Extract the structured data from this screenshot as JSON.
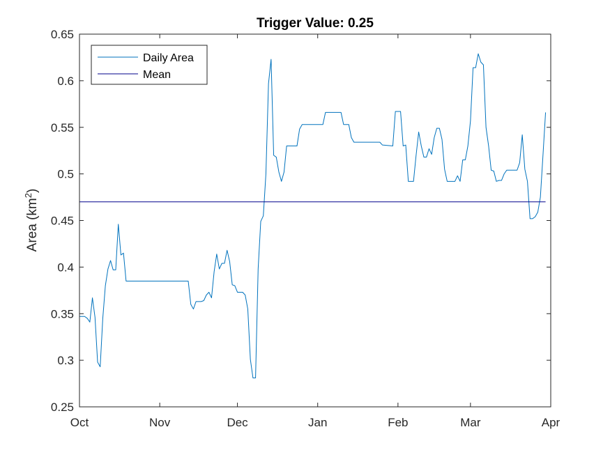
{
  "chart_data": {
    "type": "line",
    "title": "Trigger Value: 0.25",
    "xlabel": "",
    "ylabel": "Area (km",
    "ylabel_sup": "2",
    "ylabel_close": ")",
    "x_ticks": [
      "Oct",
      "Nov",
      "Dec",
      "Jan",
      "Feb",
      "Mar",
      "Apr"
    ],
    "x_tick_dates": [
      "2020-10-01",
      "2020-11-01",
      "2020-12-01",
      "2021-01-01",
      "2021-02-01",
      "2021-03-01",
      "2021-04-01"
    ],
    "xlim": [
      "2020-10-01",
      "2021-04-01"
    ],
    "y_ticks": [
      "0.25",
      "0.3",
      "0.35",
      "0.4",
      "0.45",
      "0.5",
      "0.55",
      "0.6",
      "0.65"
    ],
    "ylim": [
      0.25,
      0.65
    ],
    "grid": false,
    "legend_position": "top-left",
    "series": [
      {
        "name": "Daily Area",
        "color": "#0072BD",
        "points": [
          [
            "2020-10-01",
            0.347
          ],
          [
            "2020-10-02",
            0.347
          ],
          [
            "2020-10-03",
            0.347
          ],
          [
            "2020-10-04",
            0.345
          ],
          [
            "2020-10-05",
            0.341
          ],
          [
            "2020-10-06",
            0.367
          ],
          [
            "2020-10-07",
            0.346
          ],
          [
            "2020-10-08",
            0.298
          ],
          [
            "2020-10-09",
            0.293
          ],
          [
            "2020-10-10",
            0.345
          ],
          [
            "2020-10-11",
            0.38
          ],
          [
            "2020-10-12",
            0.398
          ],
          [
            "2020-10-13",
            0.407
          ],
          [
            "2020-10-14",
            0.397
          ],
          [
            "2020-10-15",
            0.397
          ],
          [
            "2020-10-16",
            0.446
          ],
          [
            "2020-10-17",
            0.413
          ],
          [
            "2020-10-18",
            0.415
          ],
          [
            "2020-10-19",
            0.385
          ],
          [
            "2020-10-20",
            0.385
          ],
          [
            "2020-11-12",
            0.385
          ],
          [
            "2020-11-13",
            0.36
          ],
          [
            "2020-11-14",
            0.355
          ],
          [
            "2020-11-15",
            0.363
          ],
          [
            "2020-11-16",
            0.363
          ],
          [
            "2020-11-17",
            0.363
          ],
          [
            "2020-11-18",
            0.364
          ],
          [
            "2020-11-19",
            0.37
          ],
          [
            "2020-11-20",
            0.373
          ],
          [
            "2020-11-21",
            0.367
          ],
          [
            "2020-11-22",
            0.395
          ],
          [
            "2020-11-23",
            0.414
          ],
          [
            "2020-11-24",
            0.398
          ],
          [
            "2020-11-25",
            0.404
          ],
          [
            "2020-11-26",
            0.404
          ],
          [
            "2020-11-27",
            0.418
          ],
          [
            "2020-11-28",
            0.406
          ],
          [
            "2020-11-29",
            0.381
          ],
          [
            "2020-11-30",
            0.38
          ],
          [
            "2020-12-01",
            0.373
          ],
          [
            "2020-12-02",
            0.373
          ],
          [
            "2020-12-03",
            0.373
          ],
          [
            "2020-12-04",
            0.37
          ],
          [
            "2020-12-05",
            0.355
          ],
          [
            "2020-12-06",
            0.301
          ],
          [
            "2020-12-07",
            0.281
          ],
          [
            "2020-12-08",
            0.281
          ],
          [
            "2020-12-09",
            0.398
          ],
          [
            "2020-12-10",
            0.449
          ],
          [
            "2020-12-11",
            0.455
          ],
          [
            "2020-12-12",
            0.5
          ],
          [
            "2020-12-13",
            0.597
          ],
          [
            "2020-12-14",
            0.623
          ],
          [
            "2020-12-15",
            0.52
          ],
          [
            "2020-12-16",
            0.518
          ],
          [
            "2020-12-17",
            0.502
          ],
          [
            "2020-12-18",
            0.492
          ],
          [
            "2020-12-19",
            0.502
          ],
          [
            "2020-12-20",
            0.53
          ],
          [
            "2020-12-21",
            0.53
          ],
          [
            "2020-12-22",
            0.53
          ],
          [
            "2020-12-23",
            0.53
          ],
          [
            "2020-12-24",
            0.53
          ],
          [
            "2020-12-25",
            0.548
          ],
          [
            "2020-12-26",
            0.553
          ],
          [
            "2021-01-03",
            0.553
          ],
          [
            "2021-01-04",
            0.566
          ],
          [
            "2021-01-10",
            0.566
          ],
          [
            "2021-01-11",
            0.553
          ],
          [
            "2021-01-13",
            0.553
          ],
          [
            "2021-01-14",
            0.539
          ],
          [
            "2021-01-15",
            0.534
          ],
          [
            "2021-01-25",
            0.534
          ],
          [
            "2021-01-26",
            0.531
          ],
          [
            "2021-01-30",
            0.53
          ],
          [
            "2021-01-31",
            0.567
          ],
          [
            "2021-02-02",
            0.567
          ],
          [
            "2021-02-03",
            0.53
          ],
          [
            "2021-02-04",
            0.531
          ],
          [
            "2021-02-05",
            0.492
          ],
          [
            "2021-02-07",
            0.492
          ],
          [
            "2021-02-08",
            0.52
          ],
          [
            "2021-02-09",
            0.545
          ],
          [
            "2021-02-10",
            0.53
          ],
          [
            "2021-02-11",
            0.518
          ],
          [
            "2021-02-12",
            0.518
          ],
          [
            "2021-02-13",
            0.527
          ],
          [
            "2021-02-14",
            0.521
          ],
          [
            "2021-02-15",
            0.539
          ],
          [
            "2021-02-16",
            0.549
          ],
          [
            "2021-02-17",
            0.549
          ],
          [
            "2021-02-18",
            0.537
          ],
          [
            "2021-02-19",
            0.505
          ],
          [
            "2021-02-20",
            0.492
          ],
          [
            "2021-02-23",
            0.492
          ],
          [
            "2021-02-24",
            0.498
          ],
          [
            "2021-02-25",
            0.492
          ],
          [
            "2021-02-26",
            0.515
          ],
          [
            "2021-02-27",
            0.515
          ],
          [
            "2021-02-28",
            0.53
          ],
          [
            "2021-03-01",
            0.557
          ],
          [
            "2021-03-02",
            0.614
          ],
          [
            "2021-03-03",
            0.614
          ],
          [
            "2021-03-04",
            0.629
          ],
          [
            "2021-03-05",
            0.62
          ],
          [
            "2021-03-06",
            0.617
          ],
          [
            "2021-03-07",
            0.55
          ],
          [
            "2021-03-08",
            0.53
          ],
          [
            "2021-03-09",
            0.504
          ],
          [
            "2021-03-10",
            0.503
          ],
          [
            "2021-03-11",
            0.492
          ],
          [
            "2021-03-12",
            0.493
          ],
          [
            "2021-03-13",
            0.493
          ],
          [
            "2021-03-14",
            0.5
          ],
          [
            "2021-03-15",
            0.504
          ],
          [
            "2021-03-19",
            0.504
          ],
          [
            "2021-03-20",
            0.512
          ],
          [
            "2021-03-21",
            0.542
          ],
          [
            "2021-03-22",
            0.505
          ],
          [
            "2021-03-23",
            0.492
          ],
          [
            "2021-03-24",
            0.452
          ],
          [
            "2021-03-25",
            0.452
          ],
          [
            "2021-03-26",
            0.454
          ],
          [
            "2021-03-27",
            0.459
          ],
          [
            "2021-03-28",
            0.475
          ],
          [
            "2021-03-29",
            0.52
          ],
          [
            "2021-03-30",
            0.566
          ]
        ]
      },
      {
        "name": "Mean",
        "color": "#00008B",
        "points": [
          [
            "2020-10-01",
            0.47
          ],
          [
            "2021-03-30",
            0.47
          ]
        ]
      }
    ]
  }
}
